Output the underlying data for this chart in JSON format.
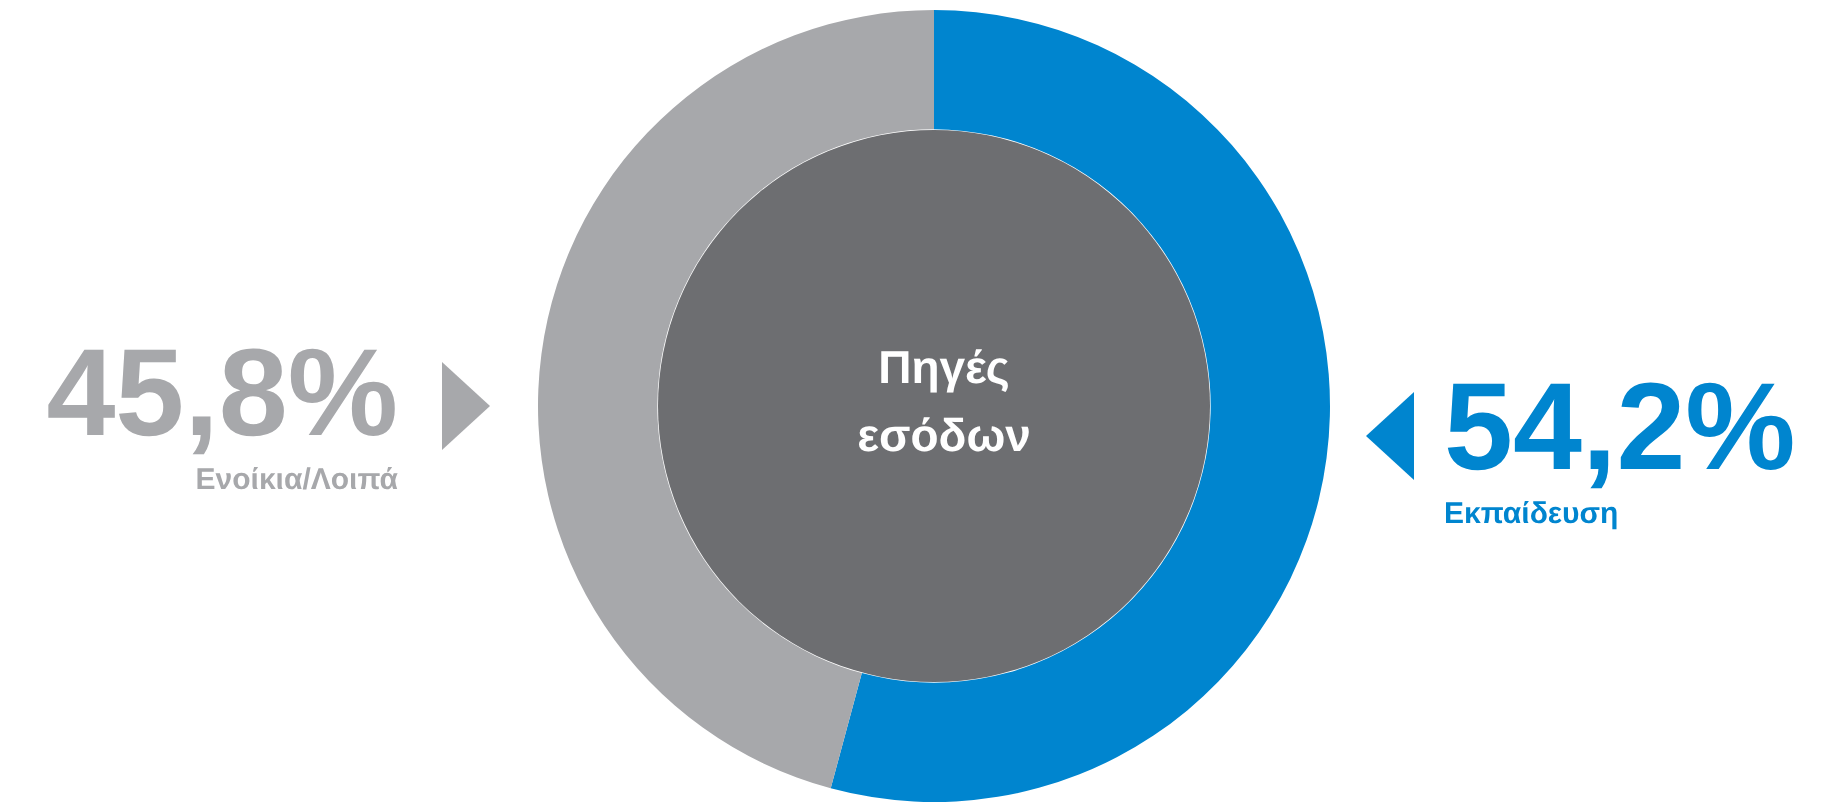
{
  "chart_data": {
    "type": "donut",
    "title": "Πηγές\nεσόδων",
    "categories": [
      "Εκπαίδευση",
      "Ενοίκια/Λοιπά"
    ],
    "values": [
      54.2,
      45.8
    ],
    "colors": [
      "#0085cf",
      "#a7a8ab"
    ],
    "value_labels": [
      "54,2%",
      "45,8%"
    ],
    "legend": false
  }
}
